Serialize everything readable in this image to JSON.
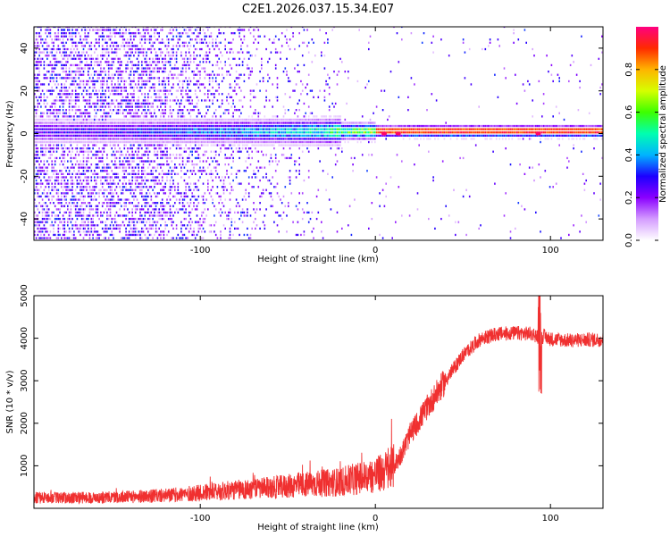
{
  "chart_data": [
    {
      "type": "heatmap",
      "title": "C2E1.2026.037.15.34.E07",
      "xlabel": "Height of straight line (km)",
      "ylabel": "Frequency (Hz)",
      "xlim": [
        -195,
        130
      ],
      "ylim": [
        -50,
        50
      ],
      "xticks": [
        -100,
        0,
        100
      ],
      "xtick_labels": [
        "-100",
        "0",
        "100"
      ],
      "yticks": [
        -40,
        -20,
        0,
        20,
        40
      ],
      "ytick_labels": [
        "-40",
        "-20",
        "0",
        "20",
        "40"
      ],
      "colorbar": {
        "label": "Normalized spectral amplitude",
        "range": [
          0,
          1
        ],
        "ticks": [
          0.0,
          0.2,
          0.4,
          0.6,
          0.8
        ],
        "tick_labels": [
          "0.0",
          "0.2",
          "0.4",
          "0.6",
          "0.8"
        ],
        "colors": [
          "#ffffff",
          "#d49cff",
          "#8a00ff",
          "#1c00ff",
          "#00b4ff",
          "#00ffb0",
          "#3dff00",
          "#d6ff00",
          "#ffb400",
          "#ff2a00",
          "#ff0080"
        ]
      },
      "band_center_hz": 0,
      "bright_points_km": [
        5,
        13,
        93
      ]
    },
    {
      "type": "line",
      "xlabel": "Height of straight line (km)",
      "ylabel": "SNR (10 * v/v)",
      "xlim": [
        -195,
        130
      ],
      "ylim": [
        0,
        5000
      ],
      "xticks": [
        -100,
        0,
        100
      ],
      "xtick_labels": [
        "-100",
        "0",
        "100"
      ],
      "yticks": [
        1000,
        2000,
        3000,
        4000,
        5000
      ],
      "ytick_labels": [
        "1000",
        "2000",
        "3000",
        "4000",
        "5000"
      ],
      "series": [
        {
          "name": "SNR",
          "color": "#f03030",
          "x": [
            -195,
            -160,
            -140,
            -120,
            -100,
            -80,
            -60,
            -40,
            -20,
            -10,
            0,
            10,
            15,
            20,
            30,
            40,
            50,
            60,
            70,
            80,
            90,
            94,
            96,
            100,
            110,
            120,
            130
          ],
          "values": [
            250,
            250,
            270,
            300,
            360,
            430,
            480,
            560,
            620,
            700,
            780,
            950,
            1300,
            1750,
            2400,
            3000,
            3600,
            3980,
            4100,
            4120,
            4100,
            4000,
            4050,
            3980,
            3950,
            3960,
            3970
          ]
        }
      ]
    }
  ]
}
